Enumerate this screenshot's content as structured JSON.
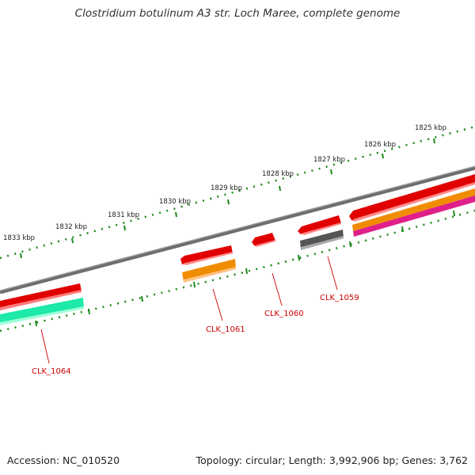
{
  "title": "Clostridium botulinum A3 str. Loch Maree, complete genome",
  "footer": {
    "accession": "Accession: NC_010520",
    "summary": "Topology: circular; Length: 3,992,906 bp; Genes: 3,762"
  },
  "scale_labels": [
    "1833 kbp",
    "1832 kbp",
    "1831 kbp",
    "1830 kbp",
    "1829 kbp",
    "1828 kbp",
    "1827 kbp",
    "1826 kbp",
    "1825 kbp"
  ],
  "genes": [
    {
      "name": "CLK_1064",
      "color": "#1de9a8"
    },
    {
      "name": "CLK_1061",
      "color": "#f08c00"
    },
    {
      "name": "CLK_1060",
      "color": "#e00000"
    },
    {
      "name": "CLK_1059",
      "color": "#555555"
    }
  ],
  "colors": {
    "backbone": "#888888",
    "forward_cds": "#e00000",
    "reverse_cds": "#f08c00",
    "magenta_feature": "#e0208a",
    "teal_feature": "#1de9a8",
    "tick": "#1a8a1a",
    "label": "#cc0000"
  }
}
